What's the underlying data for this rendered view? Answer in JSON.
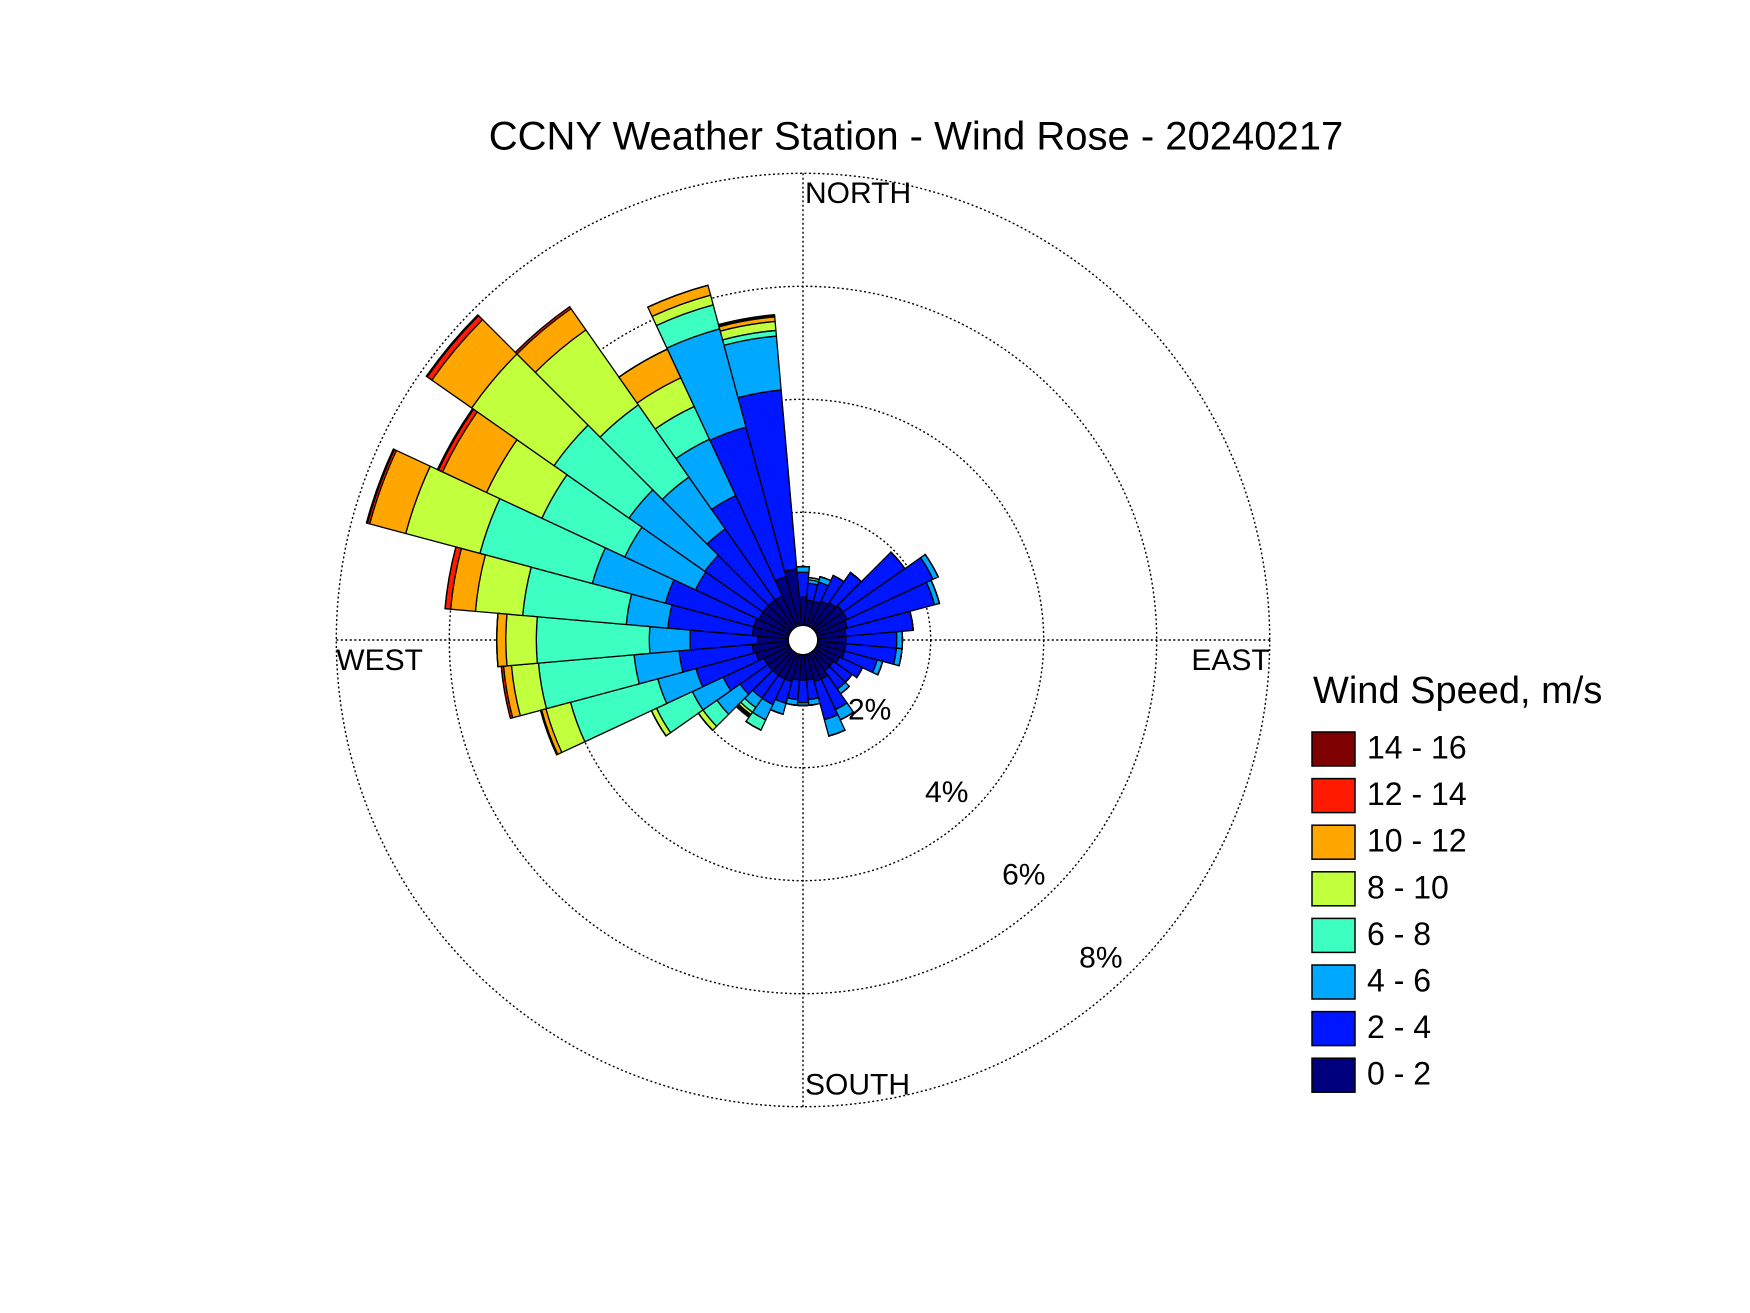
{
  "chart_data": {
    "type": "windrose",
    "title": "CCNY Weather Station - Wind Rose - 20240217",
    "direction_labels": [
      "NORTH",
      "EAST",
      "SOUTH",
      "WEST"
    ],
    "legend_title": "Wind Speed, m/s",
    "x": [
      0,
      10,
      20,
      30,
      40,
      50,
      60,
      70,
      80,
      90,
      100,
      110,
      120,
      130,
      140,
      150,
      160,
      170,
      180,
      190,
      200,
      210,
      220,
      230,
      240,
      250,
      260,
      270,
      280,
      290,
      300,
      310,
      320,
      330,
      340,
      350
    ],
    "ylim": [
      0,
      8
    ],
    "yticks": [
      {
        "value": 2,
        "label": "2%"
      },
      {
        "value": 4,
        "label": "4%"
      },
      {
        "value": 6,
        "label": "6%"
      },
      {
        "value": 8,
        "label": "8%"
      }
    ],
    "grid": true,
    "series": [
      {
        "name": "0 - 2",
        "color": "#00007f",
        "values": [
          0.5,
          0.45,
          0.45,
          0.5,
          0.55,
          0.6,
          0.6,
          0.55,
          0.5,
          0.5,
          0.5,
          0.5,
          0.45,
          0.4,
          0.4,
          0.5,
          0.5,
          0.45,
          0.45,
          0.45,
          0.5,
          0.5,
          0.5,
          0.5,
          0.5,
          0.6,
          0.64,
          0.54,
          0.64,
          0.64,
          0.6,
          0.6,
          0.6,
          0.6,
          0.9,
          1.0
        ]
      },
      {
        "name": "2 - 4",
        "color": "#0016ff",
        "values": [
          0.44,
          0.3,
          0.35,
          0.5,
          0.65,
          1.34,
          1.68,
          1.6,
          1.2,
          0.9,
          0.9,
          0.6,
          0.45,
          0.4,
          0.4,
          0.6,
          0.7,
          0.35,
          0.4,
          0.35,
          0.4,
          0.5,
          0.5,
          0.6,
          0.8,
          1.1,
          1.3,
          1.2,
          1.5,
          1.62,
          1.24,
          1.26,
          1.54,
          1.96,
          2.74,
          3.18
        ]
      },
      {
        "name": "4 - 6",
        "color": "#00a9ff",
        "values": [
          0.1,
          0.06,
          0.1,
          0,
          0,
          0,
          0.1,
          0.09,
          0,
          0.1,
          0.1,
          0.1,
          0,
          0,
          0.1,
          0.2,
          0.3,
          0.1,
          0.05,
          0.1,
          0.2,
          0.3,
          0.2,
          0.5,
          0.6,
          0.7,
          0.8,
          0.72,
          0.74,
          1.34,
          1.38,
          1.64,
          1.12,
          1.1,
          1.8,
          0.96
        ]
      },
      {
        "name": "6 - 8",
        "color": "#3dffc2",
        "values": [
          0,
          0.04,
          0,
          0,
          0,
          0,
          0,
          0,
          0,
          0,
          0,
          0,
          0,
          0,
          0,
          0,
          0,
          0,
          0,
          0,
          0,
          0.2,
          0.1,
          0.3,
          0.7,
          1.6,
          1.7,
          2.0,
          1.84,
          2.06,
          1.62,
          1.62,
          1.56,
          0.64,
          0.44,
          0.1
        ]
      },
      {
        "name": "8 - 10",
        "color": "#c2ff3d",
        "values": [
          0,
          0,
          0,
          0,
          0,
          0,
          0,
          0,
          0,
          0,
          0,
          0,
          0,
          0,
          0,
          0,
          0,
          0,
          0,
          0,
          0,
          0,
          0.05,
          0.1,
          0.1,
          0.45,
          0.48,
          0.54,
          0.84,
          1.36,
          1.08,
          1.78,
          1.62,
          0.56,
          0.18,
          0.16
        ]
      },
      {
        "name": "10 - 12",
        "color": "#ffa600",
        "values": [
          0,
          0,
          0,
          0,
          0,
          0,
          0,
          0,
          0,
          0,
          0,
          0,
          0,
          0,
          0,
          0,
          0,
          0,
          0,
          0,
          0,
          0,
          0.02,
          0,
          0,
          0.08,
          0.14,
          0.16,
          0.44,
          0.66,
          0.86,
          0.86,
          0.46,
          0.56,
          0.18,
          0.08
        ]
      },
      {
        "name": "12 - 14",
        "color": "#ff1a00",
        "values": [
          0,
          0,
          0,
          0,
          0,
          0,
          0,
          0,
          0,
          0,
          0,
          0,
          0,
          0,
          0,
          0,
          0,
          0,
          0,
          0,
          0,
          0,
          0.02,
          0,
          0,
          0.02,
          0.04,
          0,
          0.1,
          0.04,
          0.08,
          0.1,
          0.04,
          0,
          0,
          0.02
        ]
      },
      {
        "name": "14 - 16",
        "color": "#7f0000",
        "values": [
          0,
          0,
          0,
          0,
          0,
          0,
          0,
          0,
          0,
          0,
          0,
          0,
          0,
          0,
          0,
          0,
          0,
          0,
          0,
          0,
          0,
          0,
          0.02,
          0,
          0,
          0,
          0,
          0,
          0,
          0.02,
          0.02,
          0.02,
          0,
          0,
          0,
          0.02
        ]
      }
    ]
  }
}
